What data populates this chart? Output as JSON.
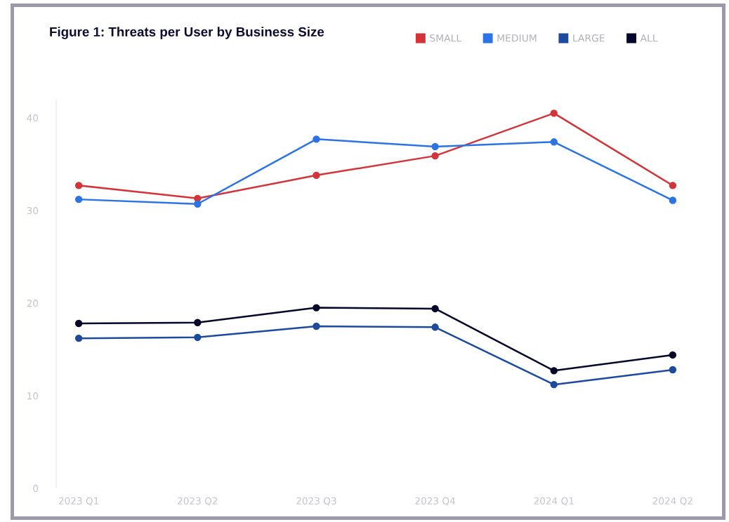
{
  "chart_data": {
    "type": "line",
    "title": "Figure 1: Threats per User by Business Size",
    "categories": [
      "2023 Q1",
      "2023 Q2",
      "2023 Q3",
      "2023 Q4",
      "2024 Q1",
      "2024 Q2"
    ],
    "series": [
      {
        "name": "SMALL",
        "color": "#d3343a",
        "values": [
          32.7,
          31.3,
          33.8,
          35.9,
          40.5,
          32.7
        ]
      },
      {
        "name": "MEDIUM",
        "color": "#2c73e6",
        "values": [
          31.2,
          30.7,
          37.7,
          36.9,
          37.4,
          31.1
        ]
      },
      {
        "name": "LARGE",
        "color": "#1c4a9c",
        "values": [
          16.2,
          16.3,
          17.5,
          17.4,
          11.2,
          12.8
        ]
      },
      {
        "name": "ALL",
        "color": "#05062b",
        "values": [
          17.8,
          17.9,
          19.5,
          19.4,
          12.7,
          14.4
        ]
      }
    ],
    "ylim": [
      0,
      42
    ],
    "yticks": [
      0,
      10,
      20,
      30,
      40
    ],
    "grid": false,
    "legend": "top right",
    "marker": "circle",
    "line_style": "solid"
  }
}
